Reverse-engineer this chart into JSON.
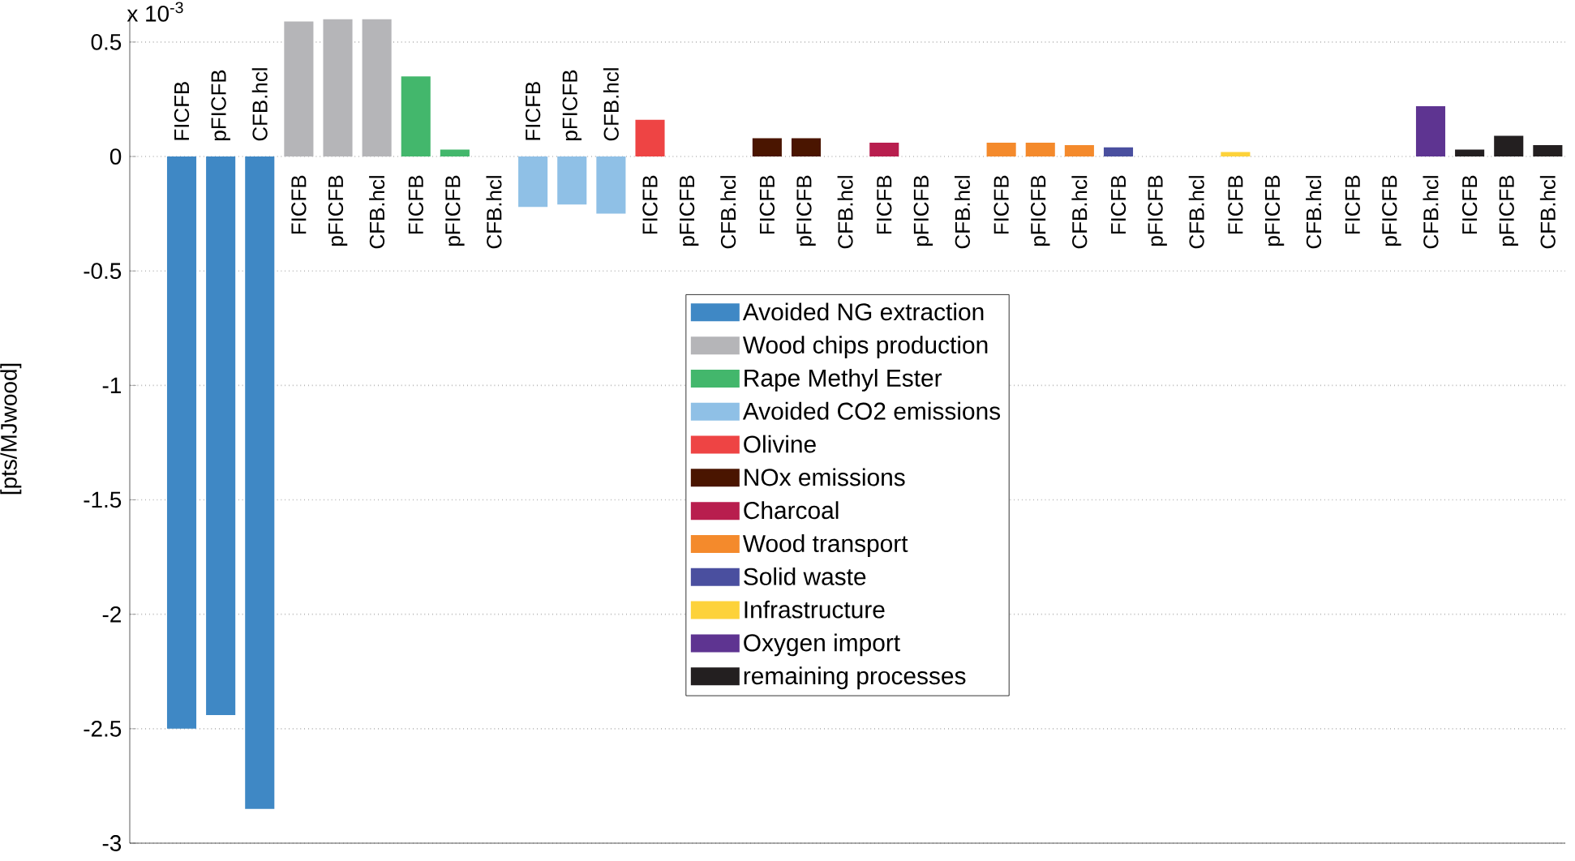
{
  "chart_data": {
    "type": "bar",
    "ylabel": "[pts/MJwood]",
    "annotations": [
      "x 10$^{-3}$"
    ],
    "categories": [
      "FICFB",
      "pFICFB",
      "CFB.hcl",
      "FICFB",
      "pFICFB",
      "CFB.hcl",
      "FICFB",
      "pFICFB",
      "CFB.hcl",
      "FICFB",
      "pFICFB",
      "CFB.hcl",
      "FICFB",
      "pFICFB",
      "CFB.hcl",
      "FICFB",
      "pFICFB",
      "CFB.hcl",
      "FICFB",
      "pFICFB",
      "CFB.hcl",
      "FICFB",
      "pFICFB",
      "CFB.hcl",
      "FICFB",
      "pFICFB",
      "CFB.hcl",
      "FICFB",
      "pFICFB",
      "CFB.hcl",
      "FICFB",
      "pFICFB",
      "CFB.hcl",
      "FICFB",
      "pFICFB",
      "CFB.hcl"
    ],
    "series": [
      {
        "name": "Avoided NG extraction",
        "color": "#3f88c5",
        "values": [
          -2.5,
          -2.44,
          -2.85,
          null,
          null,
          null,
          null,
          null,
          null,
          null,
          null,
          null,
          null,
          null,
          null,
          null,
          null,
          null,
          null,
          null,
          null,
          null,
          null,
          null,
          null,
          null,
          null,
          null,
          null,
          null,
          null,
          null,
          null,
          null,
          null,
          null
        ]
      },
      {
        "name": "Wood chips production",
        "color": "#b5b5b8",
        "values": [
          null,
          null,
          null,
          0.59,
          0.6,
          0.6,
          null,
          null,
          null,
          null,
          null,
          null,
          null,
          null,
          null,
          null,
          null,
          null,
          null,
          null,
          null,
          null,
          null,
          null,
          null,
          null,
          null,
          null,
          null,
          null,
          null,
          null,
          null,
          null,
          null,
          null
        ]
      },
      {
        "name": "Rape Methyl Ester",
        "color": "#43b76c",
        "values": [
          null,
          null,
          null,
          null,
          null,
          null,
          0.35,
          0.03,
          0,
          null,
          null,
          null,
          null,
          null,
          null,
          null,
          null,
          null,
          null,
          null,
          null,
          null,
          null,
          null,
          null,
          null,
          null,
          null,
          null,
          null,
          null,
          null,
          null,
          null,
          null,
          null
        ]
      },
      {
        "name": "Avoided CO2 emissions",
        "color": "#8fc0e6",
        "values": [
          null,
          null,
          null,
          null,
          null,
          null,
          null,
          null,
          null,
          -0.22,
          -0.21,
          -0.25,
          null,
          null,
          null,
          null,
          null,
          null,
          null,
          null,
          null,
          null,
          null,
          null,
          null,
          null,
          null,
          null,
          null,
          null,
          null,
          null,
          null,
          null,
          null,
          null
        ]
      },
      {
        "name": "Olivine",
        "color": "#ee4444",
        "values": [
          null,
          null,
          null,
          null,
          null,
          null,
          null,
          null,
          null,
          null,
          null,
          null,
          0.16,
          0,
          0,
          null,
          null,
          null,
          null,
          null,
          null,
          null,
          null,
          null,
          null,
          null,
          null,
          null,
          null,
          null,
          null,
          null,
          null,
          null,
          null,
          null
        ]
      },
      {
        "name": "NOx emissions",
        "color": "#4a1500",
        "values": [
          null,
          null,
          null,
          null,
          null,
          null,
          null,
          null,
          null,
          null,
          null,
          null,
          null,
          null,
          null,
          0.08,
          0.08,
          0,
          null,
          null,
          null,
          null,
          null,
          null,
          null,
          null,
          null,
          null,
          null,
          null,
          null,
          null,
          null,
          null,
          null,
          null
        ]
      },
      {
        "name": "Charcoal",
        "color": "#b81e4e",
        "values": [
          null,
          null,
          null,
          null,
          null,
          null,
          null,
          null,
          null,
          null,
          null,
          null,
          null,
          null,
          null,
          null,
          null,
          null,
          0.06,
          0,
          0,
          null,
          null,
          null,
          null,
          null,
          null,
          null,
          null,
          null,
          null,
          null,
          null,
          null,
          null,
          null
        ]
      },
      {
        "name": "Wood transport",
        "color": "#f48a2c",
        "values": [
          null,
          null,
          null,
          null,
          null,
          null,
          null,
          null,
          null,
          null,
          null,
          null,
          null,
          null,
          null,
          null,
          null,
          null,
          null,
          null,
          null,
          0.06,
          0.06,
          0.05,
          null,
          null,
          null,
          null,
          null,
          null,
          null,
          null,
          null,
          null,
          null,
          null
        ]
      },
      {
        "name": "Solid waste",
        "color": "#4a4f9f",
        "values": [
          null,
          null,
          null,
          null,
          null,
          null,
          null,
          null,
          null,
          null,
          null,
          null,
          null,
          null,
          null,
          null,
          null,
          null,
          null,
          null,
          null,
          null,
          null,
          null,
          0.04,
          0,
          0,
          null,
          null,
          null,
          null,
          null,
          null,
          null,
          null,
          null
        ]
      },
      {
        "name": "Infrastructure",
        "color": "#fdd23a",
        "values": [
          null,
          null,
          null,
          null,
          null,
          null,
          null,
          null,
          null,
          null,
          null,
          null,
          null,
          null,
          null,
          null,
          null,
          null,
          null,
          null,
          null,
          null,
          null,
          null,
          null,
          null,
          null,
          0.02,
          0,
          0,
          null,
          null,
          null,
          null,
          null,
          null
        ]
      },
      {
        "name": "Oxygen import",
        "color": "#5e3491",
        "values": [
          null,
          null,
          null,
          null,
          null,
          null,
          null,
          null,
          null,
          null,
          null,
          null,
          null,
          null,
          null,
          null,
          null,
          null,
          null,
          null,
          null,
          null,
          null,
          null,
          null,
          null,
          null,
          null,
          null,
          null,
          0,
          0,
          0.22,
          null,
          null,
          null
        ]
      },
      {
        "name": "remaining processes",
        "color": "#231f20",
        "values": [
          null,
          null,
          null,
          null,
          null,
          null,
          null,
          null,
          null,
          null,
          null,
          null,
          null,
          null,
          null,
          null,
          null,
          null,
          null,
          null,
          null,
          null,
          null,
          null,
          null,
          null,
          null,
          null,
          null,
          null,
          null,
          null,
          null,
          0.03,
          0.09,
          0.05
        ]
      }
    ],
    "ylim": [
      -3,
      0.62
    ],
    "yticks": [
      -3,
      -2.5,
      -2,
      -1.5,
      -1,
      -0.5,
      0,
      0.5
    ],
    "grid": "y",
    "legend": "center"
  }
}
